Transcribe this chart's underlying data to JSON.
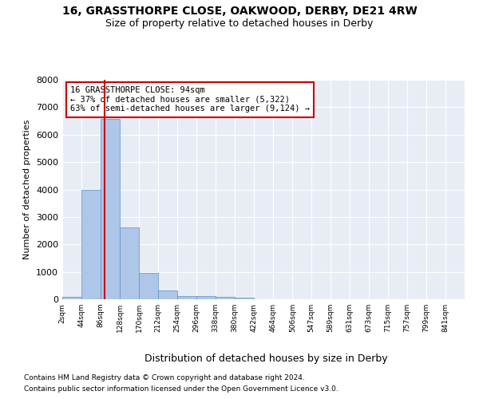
{
  "title": "16, GRASSTHORPE CLOSE, OAKWOOD, DERBY, DE21 4RW",
  "subtitle": "Size of property relative to detached houses in Derby",
  "xlabel": "Distribution of detached houses by size in Derby",
  "ylabel": "Number of detached properties",
  "footnote1": "Contains HM Land Registry data © Crown copyright and database right 2024.",
  "footnote2": "Contains public sector information licensed under the Open Government Licence v3.0.",
  "bar_color": "#aec6e8",
  "bar_edge_color": "#5a8fc2",
  "bg_color": "#e8edf5",
  "grid_color": "#ffffff",
  "annotation_box_color": "#cc0000",
  "property_size_sqm": 94,
  "annotation_title": "16 GRASSTHORPE CLOSE: 94sqm",
  "annotation_line1": "← 37% of detached houses are smaller (5,322)",
  "annotation_line2": "63% of semi-detached houses are larger (9,124) →",
  "bin_labels": [
    "2sqm",
    "44sqm",
    "86sqm",
    "128sqm",
    "170sqm",
    "212sqm",
    "254sqm",
    "296sqm",
    "338sqm",
    "380sqm",
    "422sqm",
    "464sqm",
    "506sqm",
    "547sqm",
    "589sqm",
    "631sqm",
    "673sqm",
    "715sqm",
    "757sqm",
    "799sqm",
    "841sqm"
  ],
  "bin_edges": [
    2,
    44,
    86,
    128,
    170,
    212,
    254,
    296,
    338,
    380,
    422,
    464,
    506,
    547,
    589,
    631,
    673,
    715,
    757,
    799,
    841
  ],
  "bar_heights": [
    75,
    3980,
    6580,
    2620,
    950,
    310,
    120,
    115,
    85,
    60,
    0,
    0,
    0,
    0,
    0,
    0,
    0,
    0,
    0,
    0
  ],
  "ylim": [
    0,
    8000
  ],
  "yticks": [
    0,
    1000,
    2000,
    3000,
    4000,
    5000,
    6000,
    7000,
    8000
  ],
  "vline_x": 94,
  "vline_color": "#cc0000",
  "title_fontsize": 10,
  "subtitle_fontsize": 9
}
